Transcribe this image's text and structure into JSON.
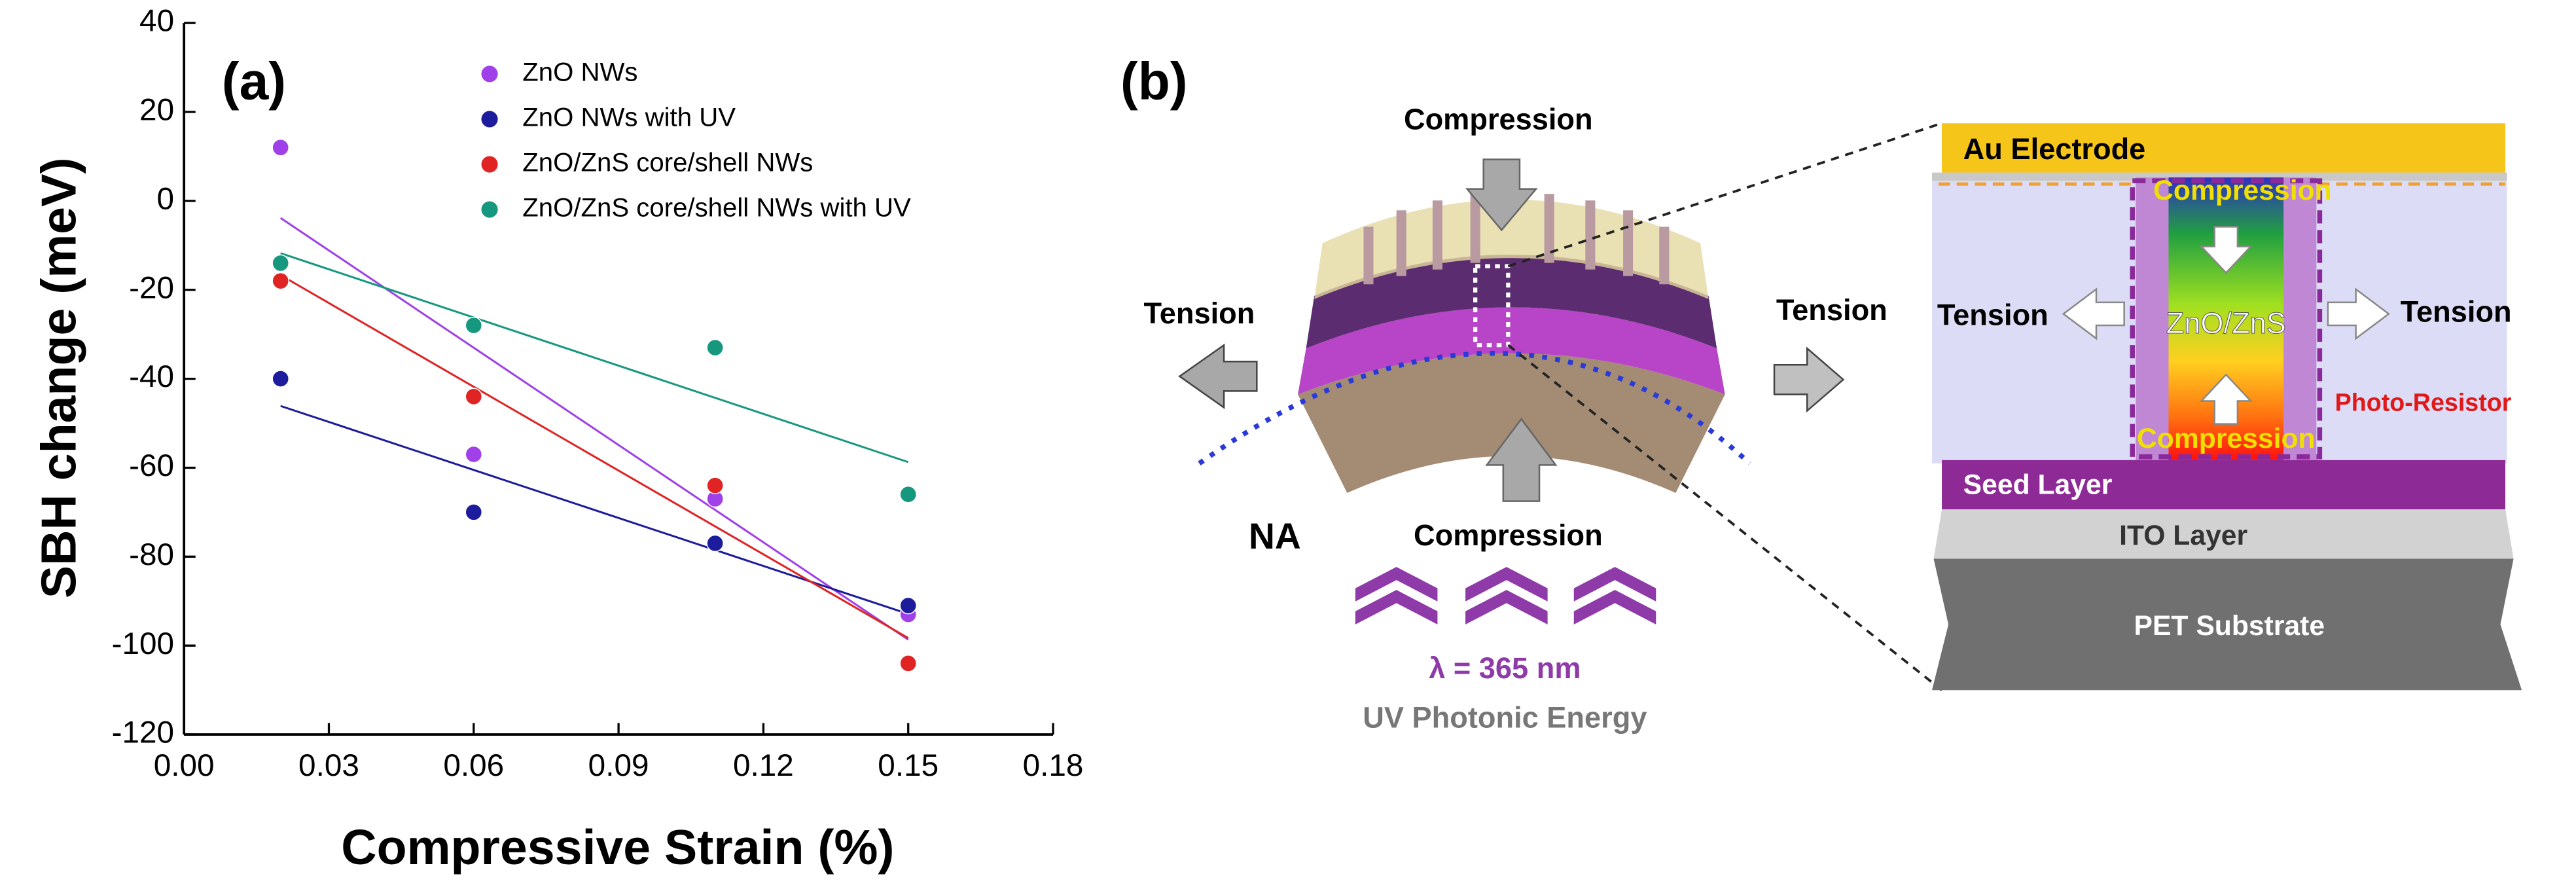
{
  "chart_data": {
    "type": "scatter",
    "label": "(a)",
    "x_label": "Compressive Strain (%)",
    "y_label": "SBH change (meV)",
    "x": [
      0.02,
      0.06,
      0.11,
      0.15
    ],
    "series": [
      {
        "name": "ZnO NWs",
        "color": "#a040e8",
        "values": [
          12,
          -57,
          -67,
          -93
        ]
      },
      {
        "name": "ZnO NWs with UV",
        "color": "#1c1c9c",
        "values": [
          -40,
          -70,
          -77,
          -91
        ]
      },
      {
        "name": "ZnO/ZnS core/shell NWs",
        "color": "#e02424",
        "values": [
          -18,
          -44,
          -64,
          -104
        ]
      },
      {
        "name": "ZnO/ZnS core/shell NWs with UV",
        "color": "#16987e",
        "values": [
          -14,
          -28,
          -33,
          -66
        ]
      }
    ],
    "fit_lines": true,
    "xlim": [
      0,
      0.18
    ],
    "xticks": [
      {
        "value": 0,
        "label": "0.00"
      },
      0.03,
      0.06,
      0.09,
      0.12,
      0.15,
      0.18
    ],
    "ylim": [
      -120,
      40
    ],
    "yticks": [
      -120,
      -100,
      -80,
      -60,
      -40,
      -20,
      0,
      20,
      40
    ]
  },
  "diagram": {
    "label": "(b)",
    "schematic": {
      "top": "Compression",
      "left": "Tension",
      "right": "Tension",
      "axis": "NA",
      "bottom": "Compression",
      "wavelength": "λ = 365 nm",
      "source": "UV Photonic Energy"
    },
    "stack": {
      "electrode": "Au Electrode",
      "top_strain": "Compression",
      "left_strain": "Tension",
      "core": "ZnO/ZnS",
      "right_strain": "Tension",
      "resistor": "Photo-Resistor",
      "bottom_strain": "Compression",
      "seed": "Seed Layer",
      "ito": "ITO Layer",
      "substrate": "PET Substrate"
    }
  }
}
